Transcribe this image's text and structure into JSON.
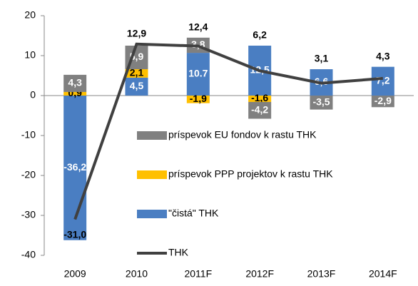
{
  "chart_data": {
    "type": "bar",
    "categories": [
      "2009",
      "2010",
      "2011F",
      "2012F",
      "2013F",
      "2014F"
    ],
    "series": [
      {
        "name": "príspevok EU fondov k rastu THK",
        "color": "#808080",
        "values": [
          4.3,
          5.9,
          3.8,
          -4.2,
          -3.5,
          -2.9
        ],
        "value_labels": [
          "4,3",
          "5,9",
          "3,8",
          "-4,2",
          "-3,5",
          "-2,9"
        ]
      },
      {
        "name": "príspevok PPP projektov k rastu THK",
        "color": "#ffc000",
        "values": [
          0.9,
          2.1,
          -1.9,
          -1.6,
          null,
          null
        ],
        "value_labels": [
          "0,9",
          "2,1",
          "-1,9",
          "-1,6",
          null,
          null
        ]
      },
      {
        "name": "\"čistá\" THK",
        "color": "#4a7ec2",
        "values": [
          -36.2,
          4.5,
          10.7,
          12.5,
          6.6,
          7.2
        ],
        "value_labels": [
          "-36,2",
          "4,5",
          "10.7",
          "12,5",
          "6,6",
          "7,2"
        ]
      },
      {
        "name": "THK",
        "type": "line",
        "color": "#404040",
        "values": [
          -31.0,
          12.9,
          12.4,
          6.2,
          3.1,
          4.3
        ],
        "value_labels": [
          "-31,0",
          "12,9",
          "12,4",
          "6,2",
          "3,1",
          "4,3"
        ]
      }
    ],
    "ylim": [
      -40,
      20
    ],
    "yticks": [
      -40,
      -30,
      -20,
      -10,
      0,
      10,
      20
    ]
  }
}
